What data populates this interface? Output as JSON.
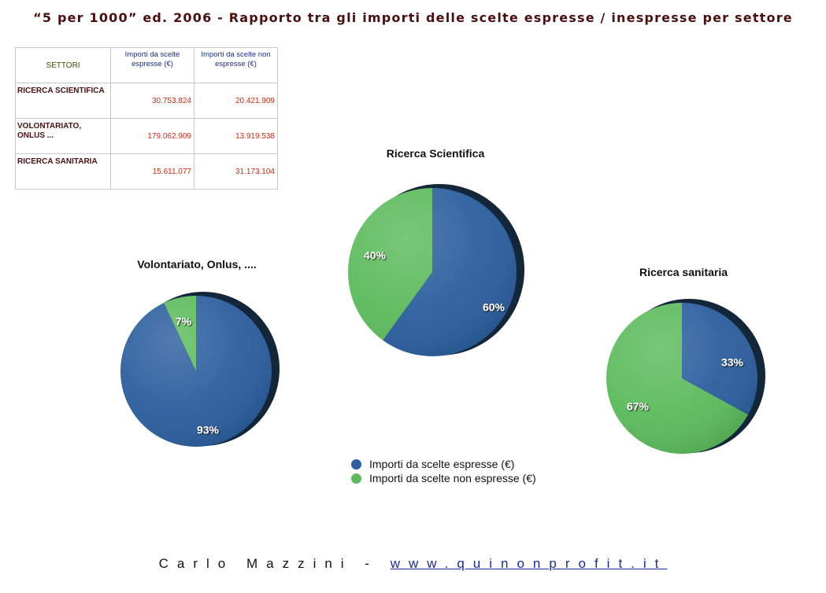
{
  "title": "“5 per 1000” ed. 2006 - Rapporto tra gli importi delle scelte espresse / inespresse per settore",
  "table": {
    "header_sector": "SETTORI",
    "header_espresse": "Importi da scelte espresse (€)",
    "header_non_espresse": "Importi da scelte non espresse (€)",
    "rows": [
      {
        "sector": "RICERCA SCIENTIFICA",
        "espresse": "30.753.824",
        "non_espresse": "20.421.909"
      },
      {
        "sector": "VOLONTARIATO, ONLUS ...",
        "espresse": "179.062.909",
        "non_espresse": "13.919.538"
      },
      {
        "sector": "RICERCA SANITARIA",
        "espresse": "15.611.077",
        "non_espresse": "31.173.104"
      }
    ]
  },
  "colors": {
    "espresse": "#2c5f9e",
    "non_espresse": "#5cbb5c",
    "shadow": "#13263a"
  },
  "chart_data": [
    {
      "type": "pie",
      "title": "Ricerca Scientifica",
      "categories": [
        "Importi da scelte espresse (€)",
        "Importi da scelte non espresse (€)"
      ],
      "values": [
        60,
        40
      ],
      "labels": [
        "60%",
        "40%"
      ]
    },
    {
      "type": "pie",
      "title": "Volontariato, Onlus, ....",
      "categories": [
        "Importi da scelte espresse (€)",
        "Importi da scelte non espresse (€)"
      ],
      "values": [
        93,
        7
      ],
      "labels": [
        "93%",
        "7%"
      ]
    },
    {
      "type": "pie",
      "title": "Ricerca sanitaria",
      "categories": [
        "Importi da scelte espresse (€)",
        "Importi da scelte non espresse (€)"
      ],
      "values": [
        33,
        67
      ],
      "labels": [
        "33%",
        "67%"
      ]
    }
  ],
  "legend": {
    "espresse": "Importi da scelte espresse (€)",
    "non_espresse": "Importi da scelte non espresse (€)"
  },
  "footer": {
    "author": "Carlo Mazzini - ",
    "link": "www.quinonprofit.it"
  }
}
